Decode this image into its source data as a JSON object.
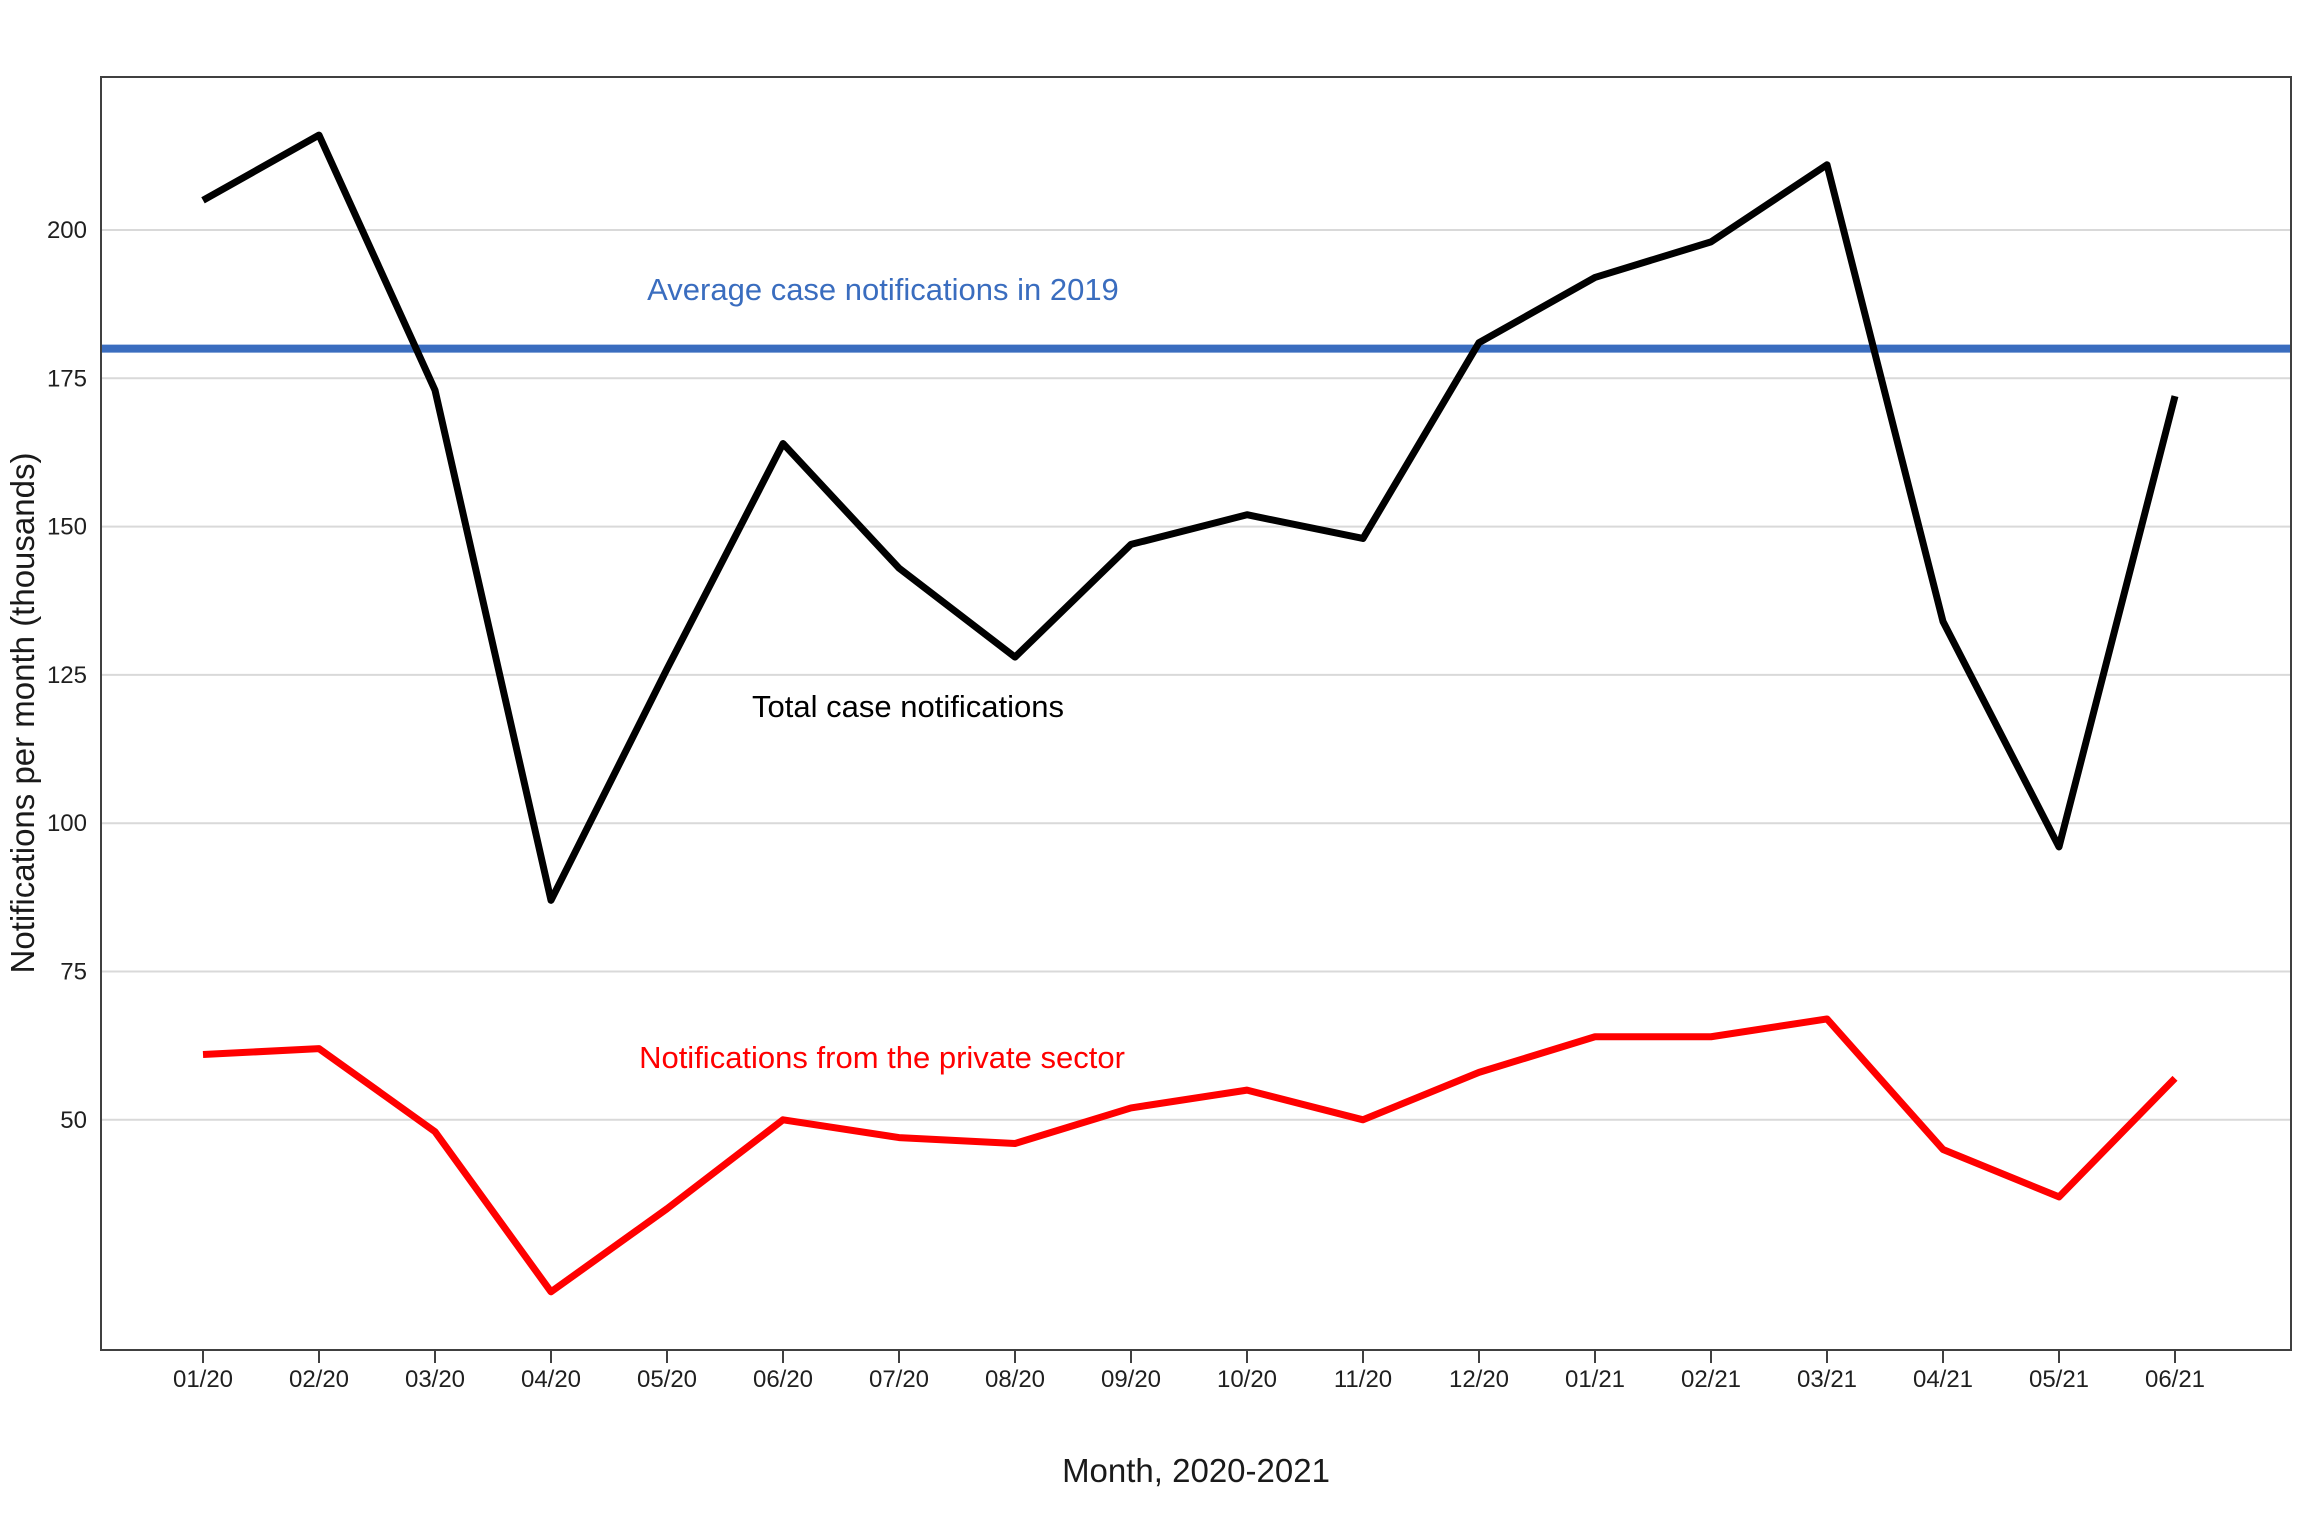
{
  "chart_data": {
    "type": "line",
    "title": "",
    "xlabel": "Month, 2020-2021",
    "ylabel": "Notifications per month (thousands)",
    "categories": [
      "01/20",
      "02/20",
      "03/20",
      "04/20",
      "05/20",
      "06/20",
      "07/20",
      "08/20",
      "09/20",
      "10/20",
      "11/20",
      "12/20",
      "01/21",
      "02/21",
      "03/21",
      "04/21",
      "05/21",
      "06/21"
    ],
    "y_ticks": [
      50,
      75,
      100,
      125,
      150,
      175,
      200
    ],
    "ylim": [
      11,
      226
    ],
    "grid": "horizontal-only",
    "legend_position": "inline-annotations",
    "series": [
      {
        "name": "Total case notifications",
        "color": "#000000",
        "values": [
          205,
          216,
          173,
          87,
          126,
          164,
          143,
          128,
          147,
          152,
          148,
          181,
          192,
          198,
          211,
          134,
          96,
          172
        ]
      },
      {
        "name": "Notifications from the private sector",
        "color": "#ff0000",
        "values": [
          61,
          62,
          48,
          21,
          35,
          50,
          47,
          46,
          52,
          55,
          50,
          58,
          64,
          64,
          67,
          45,
          37,
          57
        ]
      }
    ],
    "reference_line": {
      "label": "Average case notifications in 2019",
      "value": 180,
      "color": "#3a6dbf"
    }
  }
}
